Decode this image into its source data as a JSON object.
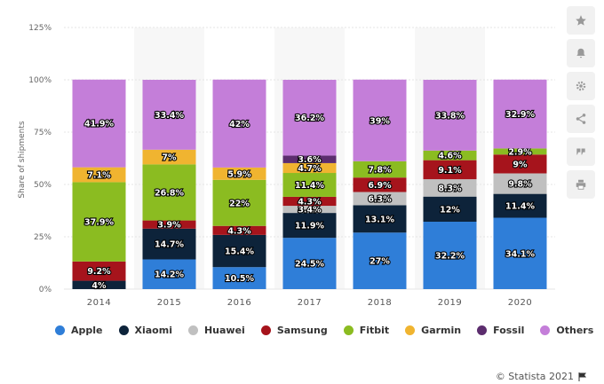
{
  "toolbar": {
    "icons": [
      "star-icon",
      "bell-icon",
      "gear-icon",
      "share-icon",
      "quote-icon",
      "print-icon"
    ]
  },
  "chart_data": {
    "type": "bar",
    "stacked": true,
    "title": "",
    "xlabel": "",
    "ylabel": "Share of shipments",
    "ylim": [
      0,
      125
    ],
    "yticks": [
      "0%",
      "25%",
      "50%",
      "75%",
      "100%",
      "125%"
    ],
    "ytick_values": [
      0,
      25,
      50,
      75,
      100,
      125
    ],
    "grid": true,
    "legend_position": "bottom",
    "categories": [
      "2014",
      "2015",
      "2016",
      "2017",
      "2018",
      "2019",
      "2020"
    ],
    "series": [
      {
        "name": "Apple",
        "color": "#2f7ed8",
        "values": [
          null,
          14.2,
          10.5,
          24.5,
          27,
          32.2,
          34.1
        ],
        "labels": [
          "",
          "14.2%",
          "10.5%",
          "24.5%",
          "27%",
          "32.2%",
          "34.1%"
        ]
      },
      {
        "name": "Xiaomi",
        "color": "#0d233a",
        "values": [
          4,
          14.7,
          15.4,
          11.9,
          13.1,
          12,
          11.4
        ],
        "labels": [
          "4%",
          "14.7%",
          "15.4%",
          "11.9%",
          "13.1%",
          "12%",
          "11.4%"
        ]
      },
      {
        "name": "Huawei",
        "color": "#c0c0c0",
        "values": [
          null,
          null,
          null,
          3.4,
          6.3,
          8.3,
          9.8
        ],
        "labels": [
          "",
          "",
          "",
          "3.4%",
          "6.3%",
          "8.3%",
          "9.8%"
        ]
      },
      {
        "name": "Samsung",
        "color": "#a6141c",
        "values": [
          9.2,
          3.9,
          4.3,
          4.3,
          6.9,
          9.1,
          9
        ],
        "labels": [
          "9.2%",
          "3.9%",
          "4.3%",
          "4.3%",
          "6.9%",
          "9.1%",
          "9%"
        ]
      },
      {
        "name": "Fitbit",
        "color": "#8bbc21",
        "values": [
          37.9,
          26.8,
          22,
          11.4,
          7.8,
          4.6,
          2.9
        ],
        "labels": [
          "37.9%",
          "26.8%",
          "22%",
          "11.4%",
          "7.8%",
          "4.6%",
          "2.9%"
        ]
      },
      {
        "name": "Garmin",
        "color": "#f0b430",
        "values": [
          7.1,
          7,
          5.9,
          4.7,
          null,
          null,
          null
        ],
        "labels": [
          "7.1%",
          "7%",
          "5.9%",
          "4.7%",
          "",
          "",
          ""
        ]
      },
      {
        "name": "Fossil",
        "color": "#5c2d6e",
        "values": [
          null,
          null,
          null,
          3.6,
          null,
          null,
          null
        ],
        "labels": [
          "",
          "",
          "",
          "3.6%",
          "",
          "",
          ""
        ]
      },
      {
        "name": "Others",
        "color": "#c47ed9",
        "values": [
          41.9,
          33.4,
          42,
          36.2,
          39,
          33.8,
          32.9
        ],
        "labels": [
          "41.9%",
          "33.4%",
          "42%",
          "36.2%",
          "39%",
          "33.8%",
          "32.9%"
        ]
      }
    ]
  },
  "legend": [
    {
      "label": "Apple",
      "color": "#2f7ed8"
    },
    {
      "label": "Xiaomi",
      "color": "#0d233a"
    },
    {
      "label": "Huawei",
      "color": "#c0c0c0"
    },
    {
      "label": "Samsung",
      "color": "#a6141c"
    },
    {
      "label": "Fitbit",
      "color": "#8bbc21"
    },
    {
      "label": "Garmin",
      "color": "#f0b430"
    },
    {
      "label": "Fossil",
      "color": "#5c2d6e"
    },
    {
      "label": "Others",
      "color": "#c47ed9"
    }
  ],
  "credit": "© Statista 2021"
}
